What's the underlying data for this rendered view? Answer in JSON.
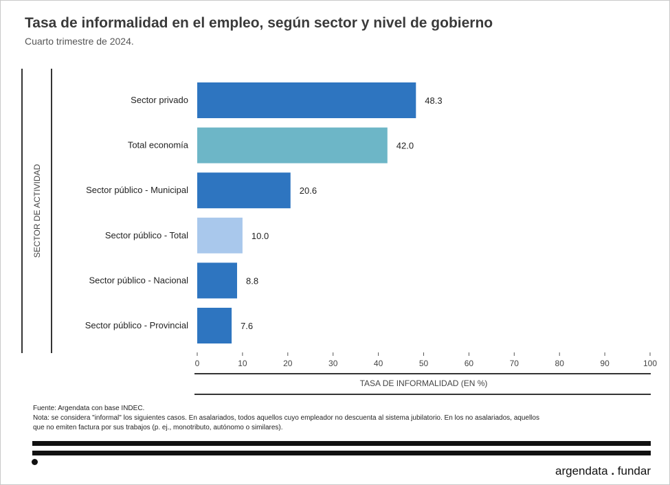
{
  "title": "Tasa de informalidad en el empleo, según sector y nivel de gobierno",
  "subtitle": "Cuarto trimestre de 2024.",
  "chart_data": {
    "type": "bar",
    "orientation": "horizontal",
    "categories": [
      "Sector privado",
      "Total economía",
      "Sector público - Municipal",
      "Sector público - Total",
      "Sector público - Nacional",
      "Sector público - Provincial"
    ],
    "values": [
      48.3,
      42.0,
      20.6,
      10.0,
      8.8,
      7.6
    ],
    "value_labels": [
      "48.3",
      "42.0",
      "20.6",
      "10.0",
      "8.8",
      "7.6"
    ],
    "bar_colors": [
      "#2e75c0",
      "#6db6c7",
      "#2e75c0",
      "#a9c8ec",
      "#2e75c0",
      "#2e75c0"
    ],
    "xlabel": "TASA DE INFORMALIDAD (EN %)",
    "ylabel": "SECTOR DE ACTIVIDAD",
    "xlim": [
      0,
      100
    ],
    "xticks": [
      0,
      10,
      20,
      30,
      40,
      50,
      60,
      70,
      80,
      90,
      100
    ],
    "grid": false
  },
  "footer": {
    "source": "Fuente: Argendata con base INDEC.",
    "note_line1": "Nota: se considera \"informal\" los siguientes casos. En asalariados, todos aquellos cuyo empleador no descuenta al sistema jubilatorio. En los no asalariados, aquellos",
    "note_line2": "que no emiten factura por sus trabajos (p. ej., monotributo, autónomo o similares)."
  },
  "brand": {
    "left": "argendata",
    "separator": ".",
    "right": "fundar"
  }
}
